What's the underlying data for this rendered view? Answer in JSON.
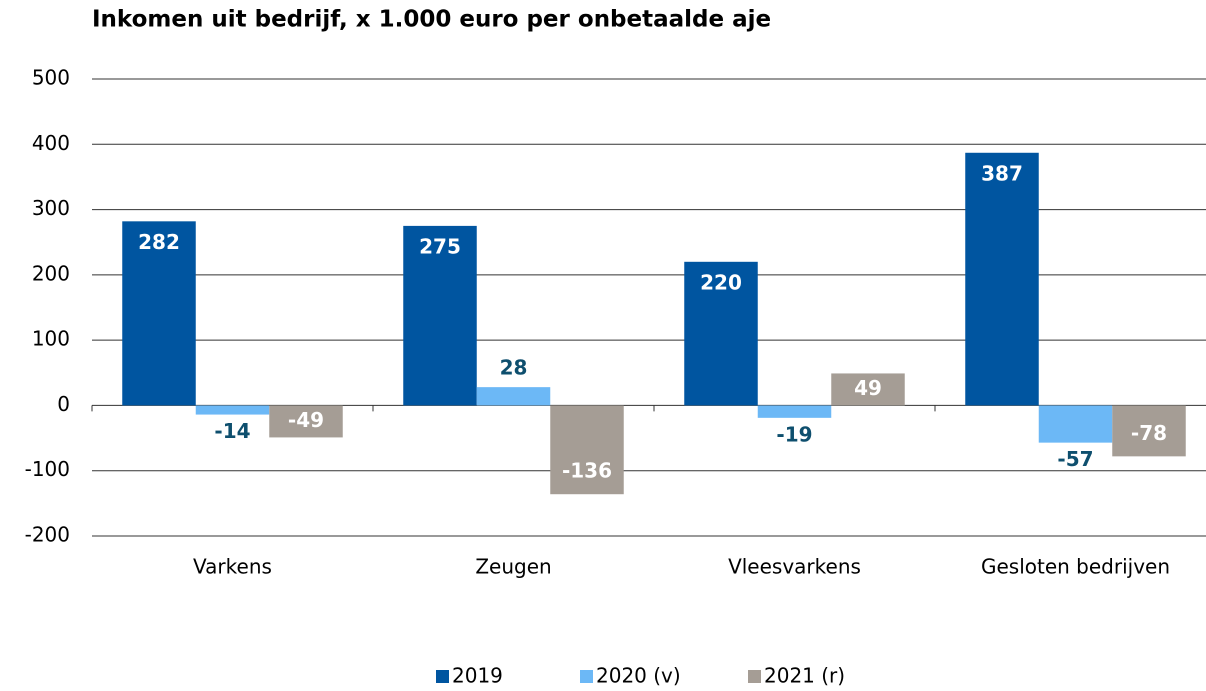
{
  "chart_data": {
    "type": "bar",
    "title": "Inkomen uit bedrijf, x 1.000 euro per onbetaalde aje",
    "categories": [
      "Varkens",
      "Zeugen",
      "Vleesvarkens",
      "Gesloten bedrijven"
    ],
    "series": [
      {
        "name": "2019",
        "color": "#0055a0",
        "values": [
          282,
          275,
          220,
          387
        ]
      },
      {
        "name": "2020 (v)",
        "color": "#6cb8f6",
        "values": [
          -14,
          28,
          -19,
          -57
        ]
      },
      {
        "name": "2021 (r)",
        "color": "#a59d95",
        "values": [
          -49,
          -136,
          49,
          -78
        ]
      }
    ],
    "ylim": [
      -200,
      500
    ],
    "yticks": [
      -200,
      -100,
      0,
      100,
      200,
      300,
      400,
      500
    ],
    "grid": true,
    "legend": "bottom"
  }
}
